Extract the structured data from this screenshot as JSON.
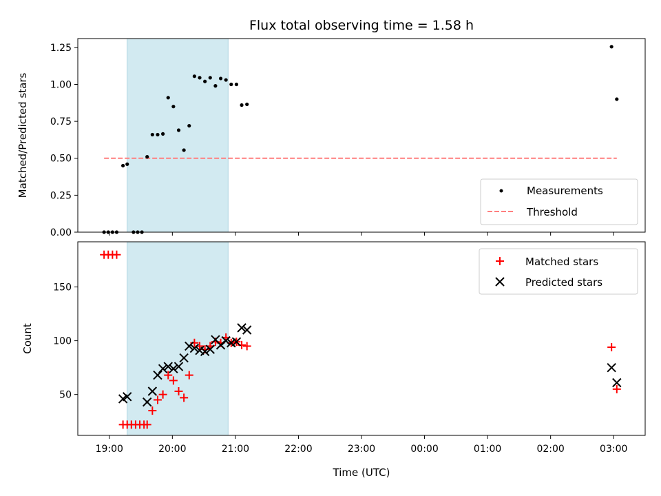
{
  "chart_data": [
    {
      "type": "scatter",
      "title": "Flux total observing time = 1.58 h",
      "ylabel": "Matched/Predicted stars",
      "xlim": [
        "18:30",
        "03:30"
      ],
      "ylim": [
        0,
        1.31
      ],
      "yticks": [
        "0.00",
        "0.25",
        "0.50",
        "0.75",
        "1.00",
        "1.25"
      ],
      "shaded_interval": [
        "19:17",
        "20:53"
      ],
      "shade_color": "#add8e6",
      "threshold": {
        "value": 0.5,
        "from": "18:55",
        "to": "03:03",
        "color": "#ff7f7f",
        "style": "dashed"
      },
      "legend": {
        "placement": "lower-right",
        "entries": [
          "Measurements",
          "Threshold"
        ]
      },
      "series": [
        {
          "name": "Measurements",
          "marker": "dot",
          "color": "#000000",
          "points": [
            [
              "18:55",
              0.0
            ],
            [
              "18:59",
              0.0
            ],
            [
              "19:03",
              0.0
            ],
            [
              "19:07",
              0.0
            ],
            [
              "19:13",
              0.45
            ],
            [
              "19:17",
              0.46
            ],
            [
              "19:23",
              0.0
            ],
            [
              "19:27",
              0.0
            ],
            [
              "19:31",
              0.0
            ],
            [
              "19:36",
              0.51
            ],
            [
              "19:41",
              0.66
            ],
            [
              "19:46",
              0.66
            ],
            [
              "19:51",
              0.665
            ],
            [
              "19:56",
              0.91
            ],
            [
              "20:01",
              0.85
            ],
            [
              "20:06",
              0.69
            ],
            [
              "20:11",
              0.555
            ],
            [
              "20:16",
              0.72
            ],
            [
              "20:21",
              1.055
            ],
            [
              "20:26",
              1.045
            ],
            [
              "20:31",
              1.02
            ],
            [
              "20:36",
              1.045
            ],
            [
              "20:41",
              0.99
            ],
            [
              "20:46",
              1.04
            ],
            [
              "20:51",
              1.03
            ],
            [
              "20:56",
              1.0
            ],
            [
              "21:01",
              1.0
            ],
            [
              "21:06",
              0.86
            ],
            [
              "21:11",
              0.865
            ],
            [
              "02:58",
              1.255
            ],
            [
              "03:03",
              0.9
            ]
          ]
        }
      ]
    },
    {
      "type": "scatter",
      "xlabel": "Time (UTC)",
      "ylabel": "Count",
      "xlim": [
        "18:30",
        "03:30"
      ],
      "ylim": [
        12,
        192
      ],
      "yticks": [
        "50",
        "100",
        "150"
      ],
      "xticks": [
        "19:00",
        "20:00",
        "21:00",
        "22:00",
        "23:00",
        "00:00",
        "01:00",
        "02:00",
        "03:00"
      ],
      "shaded_interval": [
        "19:17",
        "20:53"
      ],
      "shade_color": "#add8e6",
      "legend": {
        "placement": "top-right",
        "entries": [
          "Matched stars",
          "Predicted stars"
        ]
      },
      "series": [
        {
          "name": "Matched stars",
          "marker": "plus",
          "color": "#ff0000",
          "points": [
            [
              "18:55",
              180
            ],
            [
              "18:59",
              180
            ],
            [
              "19:03",
              180
            ],
            [
              "19:07",
              180
            ],
            [
              "19:13",
              22
            ],
            [
              "19:17",
              22
            ],
            [
              "19:21",
              22
            ],
            [
              "19:25",
              22
            ],
            [
              "19:29",
              22
            ],
            [
              "19:33",
              22
            ],
            [
              "19:36",
              22
            ],
            [
              "19:41",
              35
            ],
            [
              "19:46",
              45
            ],
            [
              "19:51",
              50
            ],
            [
              "19:56",
              68
            ],
            [
              "20:01",
              63
            ],
            [
              "20:06",
              53
            ],
            [
              "20:11",
              47
            ],
            [
              "20:16",
              68
            ],
            [
              "20:21",
              98
            ],
            [
              "20:26",
              95
            ],
            [
              "20:31",
              92
            ],
            [
              "20:36",
              95
            ],
            [
              "20:41",
              99
            ],
            [
              "20:46",
              98
            ],
            [
              "20:51",
              103
            ],
            [
              "20:56",
              98
            ],
            [
              "21:01",
              99
            ],
            [
              "21:06",
              96
            ],
            [
              "21:11",
              95
            ],
            [
              "02:58",
              94
            ],
            [
              "03:03",
              55
            ]
          ]
        },
        {
          "name": "Predicted stars",
          "marker": "x",
          "color": "#000000",
          "points": [
            [
              "19:13",
              46
            ],
            [
              "19:17",
              48
            ],
            [
              "19:36",
              43
            ],
            [
              "19:41",
              53
            ],
            [
              "19:46",
              68
            ],
            [
              "19:51",
              74
            ],
            [
              "19:56",
              76
            ],
            [
              "20:01",
              74
            ],
            [
              "20:06",
              76
            ],
            [
              "20:11",
              84
            ],
            [
              "20:16",
              95
            ],
            [
              "20:21",
              93
            ],
            [
              "20:26",
              91
            ],
            [
              "20:31",
              90
            ],
            [
              "20:36",
              92
            ],
            [
              "20:41",
              101
            ],
            [
              "20:46",
              96
            ],
            [
              "20:51",
              100
            ],
            [
              "20:56",
              98
            ],
            [
              "21:01",
              99
            ],
            [
              "21:06",
              112
            ],
            [
              "21:11",
              110
            ],
            [
              "02:58",
              75
            ],
            [
              "03:03",
              61
            ]
          ]
        }
      ]
    }
  ]
}
